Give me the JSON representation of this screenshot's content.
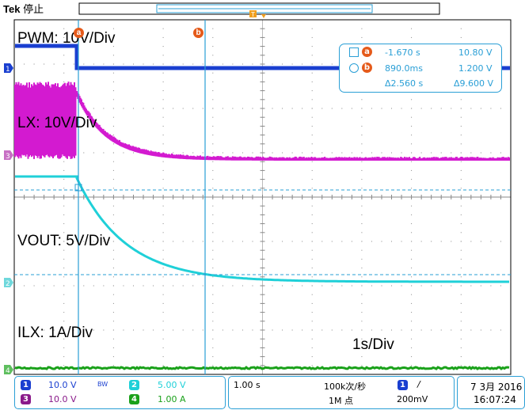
{
  "header": {
    "brand": "Tek",
    "state": "停止"
  },
  "annotations": {
    "pwm": "PWM: 10V/Div",
    "lx": "LX: 10V/Div",
    "vout": "VOUT: 5V/Div",
    "ilx": "ILX: 1A/Div",
    "timebase": "1s/Div"
  },
  "cursors": {
    "a_label": "a",
    "b_label": "b",
    "a_time": "-1.670 s",
    "a_value": "10.80 V",
    "b_time": "890.0ms",
    "b_value": "1.200 V",
    "delta_time": "Δ2.560 s",
    "delta_value": "Δ9.600 V"
  },
  "trigger_marker": "T",
  "channels": [
    {
      "id": "1",
      "scale": "10.0 V",
      "color": "#1a3fd0"
    },
    {
      "id": "2",
      "scale": "5.00 V",
      "color": "#1fd0d8"
    },
    {
      "id": "3",
      "scale": "10.0 V",
      "color": "#c51bbf"
    },
    {
      "id": "4",
      "scale": "1.00 A",
      "color": "#1aa11a"
    }
  ],
  "bandwidth_mark": "BW",
  "horizontal": {
    "timebase": "1.00 s",
    "sample_rate": "100k次/秒",
    "record_length": "1M 点"
  },
  "trigger": {
    "source": "1",
    "slope": "/",
    "level": "200mV"
  },
  "datetime": {
    "date": "7 3月 2016",
    "time": "16:07:24"
  },
  "colors": {
    "ch1": "#1a3fd0",
    "ch2": "#1fd0d8",
    "ch3": "#d31ad0",
    "ch4": "#1aa11a",
    "cursor": "#2a9fd6",
    "marker": "#e55a1a"
  }
}
